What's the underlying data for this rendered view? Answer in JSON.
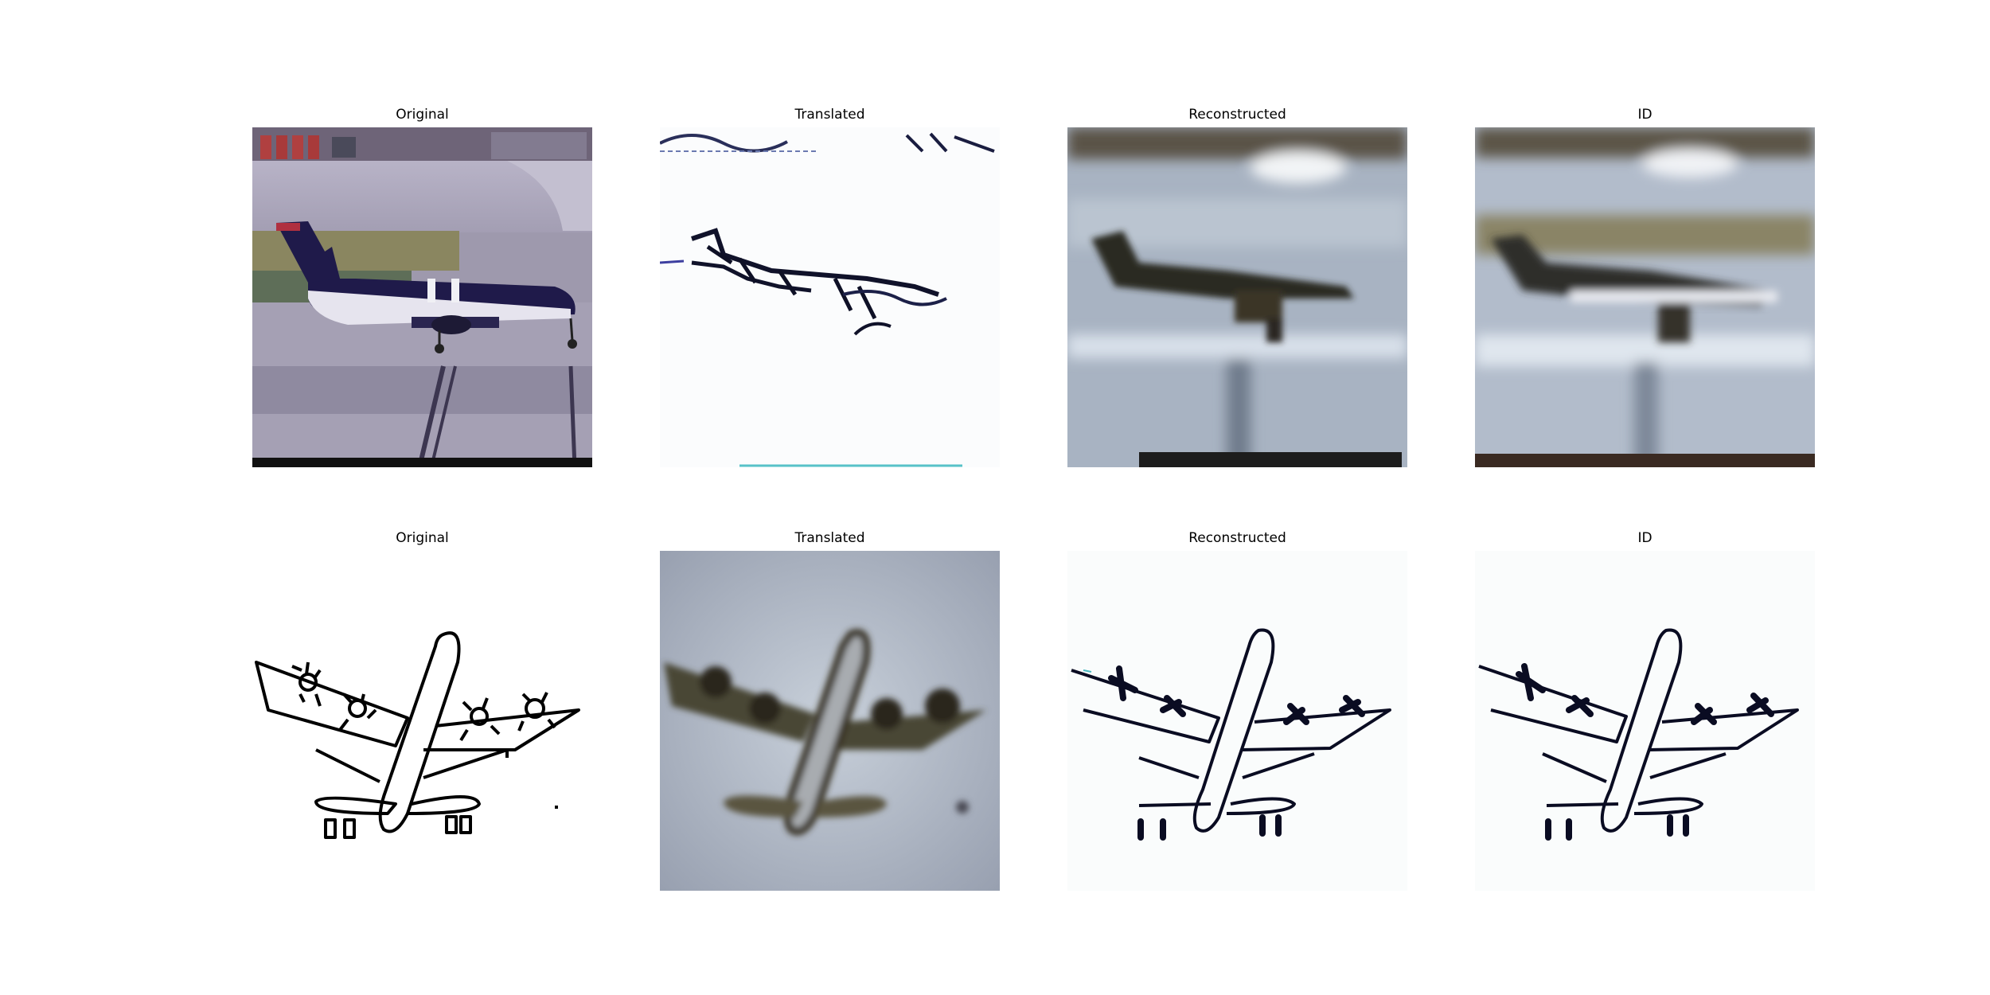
{
  "figure": {
    "rows": [
      {
        "panels": [
          {
            "title": "Original",
            "image": "photo-plane-on-tarmac"
          },
          {
            "title": "Translated",
            "image": "sketch-style-plane"
          },
          {
            "title": "Reconstructed",
            "image": "blurry-photo-plane"
          },
          {
            "title": "ID",
            "image": "blurry-photo-plane"
          }
        ]
      },
      {
        "panels": [
          {
            "title": "Original",
            "image": "line-drawing-four-prop-plane"
          },
          {
            "title": "Translated",
            "image": "photo-style-plane"
          },
          {
            "title": "Reconstructed",
            "image": "line-drawing-four-prop-plane"
          },
          {
            "title": "ID",
            "image": "line-drawing-four-prop-plane"
          }
        ]
      }
    ]
  }
}
